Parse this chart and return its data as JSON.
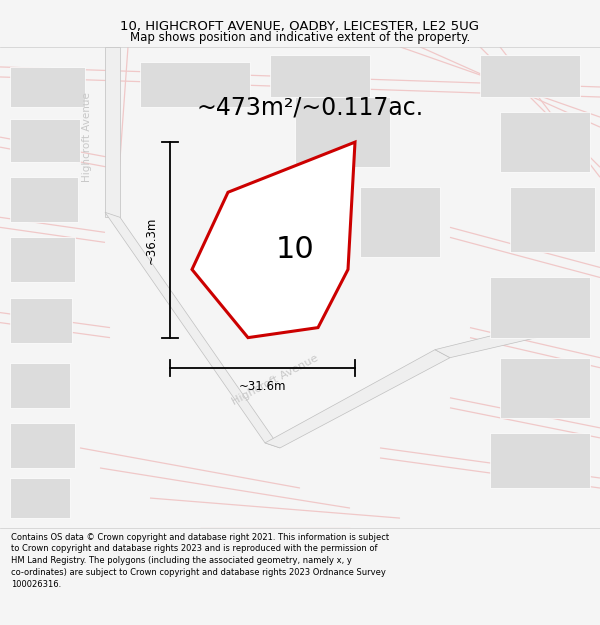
{
  "title_line1": "10, HIGHCROFT AVENUE, OADBY, LEICESTER, LE2 5UG",
  "title_line2": "Map shows position and indicative extent of the property.",
  "area_text": "~473m²/~0.117ac.",
  "property_number": "10",
  "dim_vertical": "~36.3m",
  "dim_horizontal": "~31.6m",
  "street_label_diag": "Highcroft Avenue",
  "street_label_vert": "Highcroft Avenue",
  "footer_text": "Contains OS data © Crown copyright and database right 2021. This information is subject\nto Crown copyright and database rights 2023 and is reproduced with the permission of\nHM Land Registry. The polygons (including the associated geometry, namely x, y\nco-ordinates) are subject to Crown copyright and database rights 2023 Ordnance Survey\n100026316.",
  "bg_color": "#f5f5f5",
  "map_bg": "#ffffff",
  "property_fill": "#ffffff",
  "property_edge": "#cc0000",
  "building_fill": "#dcdcdc",
  "road_color": "#f0c8c8",
  "dim_color": "#000000",
  "text_color": "#000000",
  "gray_road_color": "#c0c0c0",
  "street_text_color": "#c8c8c8",
  "road_fill": "#efefef"
}
